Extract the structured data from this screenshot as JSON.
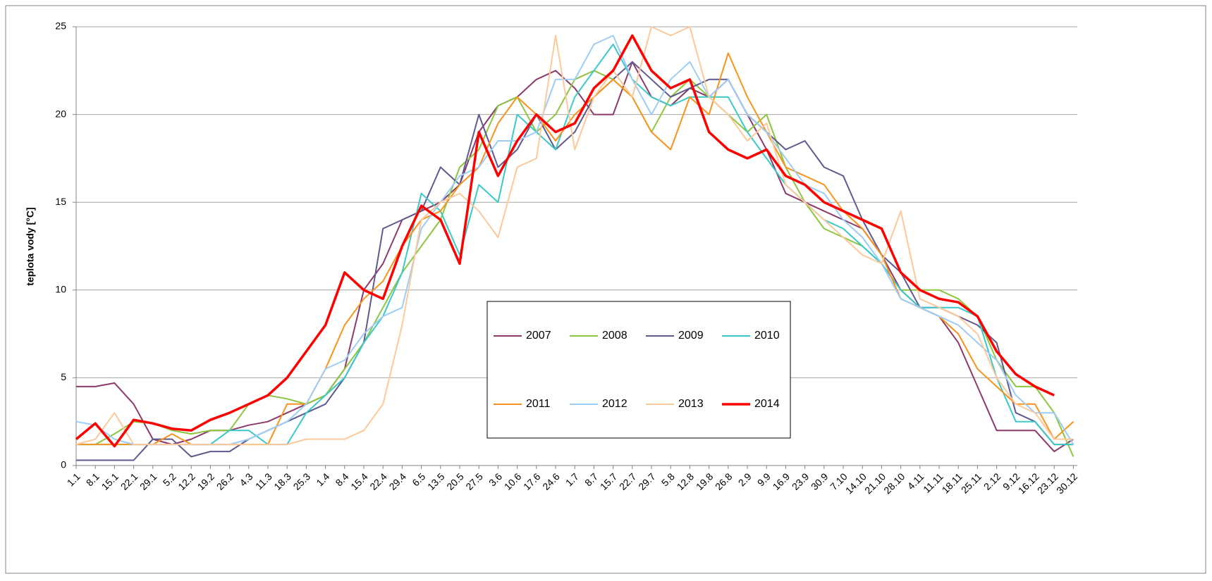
{
  "chart_data": {
    "type": "line",
    "y_label": "teplota vody [°C]",
    "categories": [
      "1.1",
      "8.1",
      "15.1",
      "22.1",
      "29.1",
      "5.2",
      "12.2",
      "19.2",
      "26.2",
      "4.3",
      "11.3",
      "18.3",
      "25.3",
      "1.4",
      "8.4",
      "15.4",
      "22.4",
      "29.4",
      "6.5",
      "13.5",
      "20.5",
      "27.5",
      "3.6",
      "10.6",
      "17.6",
      "24.6",
      "1.7",
      "8.7",
      "15.7",
      "22.7",
      "29.7",
      "5.8",
      "12.8",
      "19.8",
      "26.8",
      "2.9",
      "9.9",
      "16.9",
      "23.9",
      "30.9",
      "7.10",
      "14.10",
      "21.10",
      "28.10",
      "4.11",
      "11.11",
      "18.11",
      "25.11",
      "2.12",
      "9.12",
      "16.12",
      "23.12",
      "30.12"
    ],
    "ylim": [
      0,
      25
    ],
    "yticks": [
      0,
      5,
      10,
      15,
      20,
      25
    ],
    "grid": true,
    "series": [
      {
        "name": "2007",
        "color": "#8b3a6b",
        "line_width": 2,
        "values": [
          4.5,
          4.5,
          4.7,
          3.5,
          1.5,
          1.2,
          1.5,
          2.0,
          2.0,
          2.3,
          2.5,
          3.0,
          3.5,
          4.0,
          5.5,
          10.0,
          11.5,
          14.0,
          14.5,
          15.0,
          16.0,
          19.0,
          20.5,
          21.0,
          22.0,
          22.5,
          21.5,
          20.0,
          20.0,
          23.0,
          21.0,
          20.5,
          21.5,
          21.0,
          22.0,
          20.0,
          18.0,
          15.5,
          15.0,
          14.5,
          14.0,
          13.5,
          12.0,
          10.0,
          9.0,
          8.5,
          7.0,
          4.5,
          2.0,
          2.0,
          2.0,
          0.8,
          1.5
        ]
      },
      {
        "name": "2008",
        "color": "#8dc63f",
        "line_width": 2,
        "values": [
          1.2,
          1.2,
          1.8,
          2.5,
          2.4,
          2.0,
          1.8,
          2.0,
          2.0,
          3.5,
          4.0,
          3.8,
          3.5,
          4.0,
          5.5,
          7.0,
          9.0,
          11.0,
          12.5,
          14.0,
          17.0,
          18.0,
          20.5,
          21.0,
          19.0,
          20.0,
          22.0,
          22.5,
          22.0,
          21.0,
          19.0,
          21.0,
          22.0,
          21.0,
          20.0,
          19.0,
          20.0,
          17.0,
          15.0,
          13.5,
          13.0,
          12.5,
          11.5,
          10.0,
          10.0,
          10.0,
          9.5,
          8.5,
          6.0,
          4.5,
          4.5,
          3.0,
          0.5
        ]
      },
      {
        "name": "2009",
        "color": "#5e5a8e",
        "line_width": 2,
        "values": [
          0.3,
          0.3,
          0.3,
          0.3,
          1.5,
          1.5,
          0.5,
          0.8,
          0.8,
          1.5,
          2.0,
          2.5,
          3.0,
          3.5,
          5.0,
          7.0,
          13.5,
          14.0,
          14.5,
          17.0,
          16.0,
          20.0,
          17.0,
          18.0,
          20.0,
          18.0,
          19.0,
          21.0,
          22.0,
          23.0,
          22.0,
          21.0,
          21.5,
          22.0,
          22.0,
          20.0,
          19.0,
          18.0,
          18.5,
          17.0,
          16.5,
          14.0,
          12.0,
          11.0,
          9.0,
          9.0,
          8.5,
          8.0,
          7.0,
          3.0,
          2.5,
          1.2,
          1.2
        ]
      },
      {
        "name": "2010",
        "color": "#3cc8c8",
        "line_width": 2,
        "values": [
          1.2,
          1.2,
          1.2,
          1.2,
          1.2,
          1.2,
          1.2,
          1.2,
          2.0,
          2.0,
          1.2,
          1.2,
          3.0,
          4.0,
          5.0,
          7.0,
          8.5,
          11.0,
          15.5,
          14.5,
          12.0,
          16.0,
          15.0,
          20.0,
          19.0,
          18.0,
          21.0,
          22.5,
          24.0,
          22.0,
          21.0,
          20.5,
          21.0,
          21.0,
          21.0,
          19.0,
          17.5,
          16.0,
          15.0,
          14.0,
          13.5,
          12.5,
          11.5,
          10.0,
          9.0,
          9.0,
          9.0,
          8.5,
          5.0,
          2.5,
          2.5,
          1.2,
          1.2
        ]
      },
      {
        "name": "2011",
        "color": "#f7941d",
        "line_width": 2,
        "values": [
          1.2,
          1.2,
          1.2,
          1.2,
          1.2,
          1.8,
          1.2,
          1.2,
          1.2,
          1.2,
          1.2,
          3.5,
          3.5,
          5.5,
          8.0,
          9.5,
          10.5,
          12.5,
          14.0,
          14.5,
          16.0,
          17.0,
          19.5,
          21.0,
          20.0,
          18.5,
          20.0,
          21.0,
          22.0,
          21.0,
          19.0,
          18.0,
          21.0,
          20.0,
          23.5,
          21.0,
          19.0,
          17.0,
          16.5,
          16.0,
          14.5,
          13.5,
          12.0,
          9.5,
          9.0,
          8.5,
          7.5,
          5.5,
          4.5,
          3.5,
          3.5,
          1.5,
          2.5
        ]
      },
      {
        "name": "2012",
        "color": "#9dcdf5",
        "line_width": 2,
        "values": [
          2.5,
          2.3,
          1.5,
          1.2,
          1.2,
          1.2,
          1.2,
          1.2,
          1.2,
          1.5,
          2.0,
          2.5,
          3.5,
          5.5,
          6.0,
          7.5,
          8.5,
          9.0,
          13.5,
          15.0,
          16.5,
          17.0,
          18.5,
          18.5,
          19.0,
          22.0,
          22.0,
          24.0,
          24.5,
          22.0,
          20.0,
          22.0,
          23.0,
          21.0,
          22.0,
          20.0,
          19.0,
          17.5,
          16.0,
          15.5,
          14.0,
          13.0,
          11.5,
          9.5,
          9.0,
          8.5,
          8.0,
          7.0,
          6.0,
          4.0,
          3.0,
          3.0,
          1.2
        ]
      },
      {
        "name": "2013",
        "color": "#fcc99b",
        "line_width": 2,
        "values": [
          1.2,
          1.5,
          3.0,
          1.2,
          1.2,
          1.2,
          1.2,
          1.2,
          1.2,
          1.2,
          1.2,
          1.2,
          1.5,
          1.5,
          1.5,
          2.0,
          3.5,
          8.0,
          14.0,
          15.0,
          15.5,
          14.5,
          13.0,
          17.0,
          17.5,
          24.5,
          18.0,
          21.0,
          22.5,
          21.0,
          25.0,
          24.5,
          25.0,
          21.0,
          20.0,
          18.5,
          19.5,
          16.0,
          15.0,
          14.0,
          13.0,
          12.0,
          11.5,
          14.5,
          9.5,
          9.0,
          8.5,
          7.5,
          5.0,
          3.5,
          3.0,
          1.5,
          1.5
        ]
      },
      {
        "name": "2014",
        "color": "#ff0000",
        "line_width": 3.5,
        "values": [
          1.5,
          2.4,
          1.1,
          2.6,
          2.4,
          2.1,
          2.0,
          2.6,
          3.0,
          3.5,
          4.0,
          5.0,
          6.5,
          8.0,
          11.0,
          10.0,
          9.5,
          12.5,
          14.8,
          14.0,
          11.5,
          19.0,
          16.5,
          18.5,
          20.0,
          19.0,
          19.5,
          21.5,
          22.5,
          24.5,
          22.5,
          21.5,
          22.0,
          19.0,
          18.0,
          17.5,
          18.0,
          16.5,
          16.0,
          15.0,
          14.5,
          14.0,
          13.5,
          11.0,
          10.0,
          9.5,
          9.3,
          8.5,
          6.5,
          5.2,
          4.5,
          4.0,
          null
        ]
      }
    ]
  }
}
